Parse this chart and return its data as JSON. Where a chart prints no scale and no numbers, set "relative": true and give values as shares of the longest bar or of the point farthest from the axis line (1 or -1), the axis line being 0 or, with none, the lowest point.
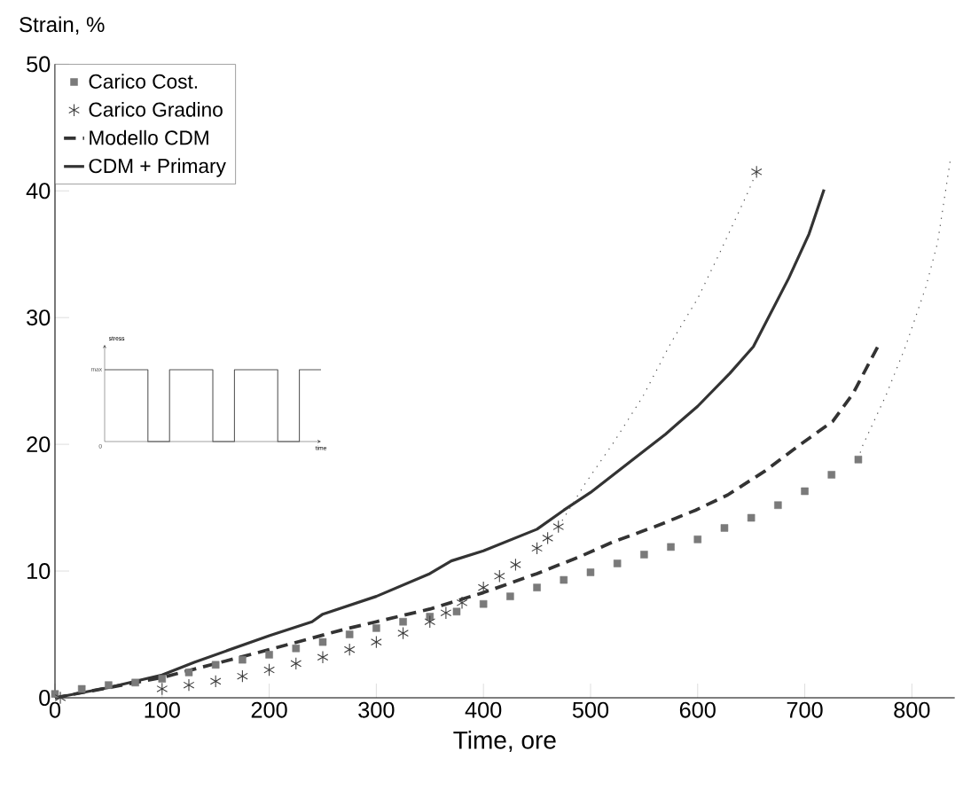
{
  "chart_data": [
    {
      "type": "line",
      "xlabel": "Time, ore",
      "ylabel": "Strain, %",
      "xlim": [
        0,
        840
      ],
      "ylim": [
        0,
        50
      ],
      "xticks": [
        0,
        100,
        200,
        300,
        400,
        500,
        600,
        700,
        800
      ],
      "yticks": [
        0,
        10,
        20,
        30,
        40,
        50
      ],
      "legend": "top left",
      "series": [
        {
          "name": "Carico Cost.",
          "type": "scatter",
          "marker": "square",
          "color": "#7a7a7a",
          "x": [
            0,
            25,
            50,
            75,
            100,
            125,
            150,
            175,
            200,
            225,
            250,
            275,
            300,
            325,
            350,
            375,
            400,
            425,
            450,
            475,
            500,
            525,
            550,
            575,
            600,
            625,
            650,
            675,
            700,
            725,
            750
          ],
          "values": [
            0.3,
            0.7,
            1.0,
            1.2,
            1.5,
            2.0,
            2.6,
            3.0,
            3.4,
            3.9,
            4.4,
            5.0,
            5.5,
            6.0,
            6.4,
            6.8,
            7.4,
            8.0,
            8.7,
            9.3,
            9.9,
            10.6,
            11.3,
            11.9,
            12.5,
            13.4,
            14.2,
            15.2,
            16.3,
            17.6,
            18.8
          ]
        },
        {
          "name": "Carico Gradino",
          "type": "scatter",
          "marker": "cross",
          "color": "#3c3c3c",
          "x": [
            5,
            100,
            125,
            150,
            175,
            200,
            225,
            250,
            275,
            300,
            325,
            350,
            365,
            380,
            400,
            415,
            430,
            450,
            460,
            470,
            655
          ],
          "values": [
            0,
            0.7,
            1.0,
            1.3,
            1.7,
            2.2,
            2.7,
            3.2,
            3.8,
            4.4,
            5.1,
            6.0,
            6.7,
            7.5,
            8.7,
            9.6,
            10.5,
            11.8,
            12.6,
            13.5,
            41.5
          ]
        },
        {
          "name": "Modello CDM",
          "type": "line",
          "line_style": "dashed",
          "color": "#333333",
          "x": [
            0,
            100,
            200,
            270,
            300,
            350,
            400,
            450,
            489,
            521,
            560,
            598,
            628,
            663,
            696,
            726,
            745,
            770
          ],
          "values": [
            0,
            1.6,
            3.8,
            5.4,
            6.0,
            7.0,
            8.3,
            9.8,
            11.1,
            12.3,
            13.5,
            14.8,
            16.0,
            17.9,
            20.0,
            21.8,
            24.0,
            28.0
          ]
        },
        {
          "name": "CDM + Primary",
          "type": "line",
          "line_style": "solid",
          "color": "#333333",
          "x": [
            0,
            50,
            100,
            130,
            200,
            240,
            250,
            300,
            350,
            370,
            400,
            450,
            475,
            500,
            535,
            570,
            600,
            630,
            652,
            685,
            704,
            718
          ],
          "values": [
            0,
            0.8,
            1.8,
            2.8,
            4.9,
            6.0,
            6.6,
            8.0,
            9.8,
            10.8,
            11.6,
            13.3,
            14.8,
            16.2,
            18.5,
            20.8,
            23.0,
            25.6,
            27.7,
            33.1,
            36.6,
            40.1
          ]
        },
        {
          "type": "line",
          "line_style": "dotted",
          "color": "#555555",
          "x": [
            470,
            495,
            522,
            549,
            575,
            600,
            620,
            647,
            655
          ],
          "values": [
            13.5,
            16.9,
            20.2,
            23.8,
            28.0,
            31.5,
            35.0,
            39.9,
            41.5
          ]
        },
        {
          "type": "line",
          "line_style": "dotted",
          "color": "#555555",
          "x": [
            750,
            753,
            776,
            794,
            813,
            824,
            836
          ],
          "values": [
            18.8,
            19.7,
            23.9,
            27.7,
            32.4,
            35.9,
            42.5
          ]
        }
      ]
    },
    {
      "type": "step",
      "relative": true,
      "xlabel": "time",
      "ylabel": "stress",
      "color": "#555555",
      "categories": [
        null,
        null,
        null,
        null,
        null,
        null,
        null,
        null,
        null,
        null,
        null
      ],
      "values": [
        1,
        1,
        0,
        1,
        1,
        0,
        1,
        1,
        0,
        1,
        1
      ],
      "annotations": [
        "max",
        "0"
      ]
    }
  ]
}
